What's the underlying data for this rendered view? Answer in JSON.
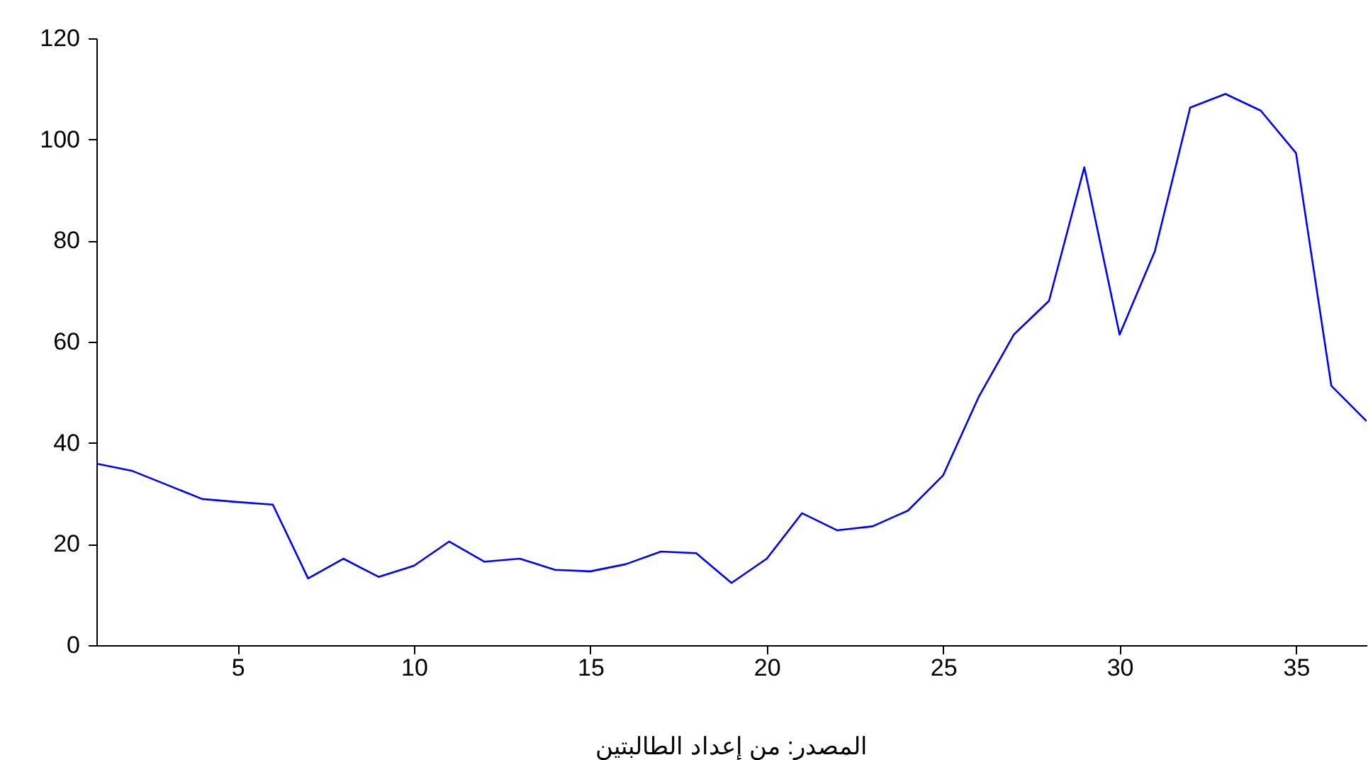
{
  "chart_data": {
    "type": "line",
    "x": [
      1,
      2,
      3,
      4,
      5,
      6,
      7,
      8,
      9,
      10,
      11,
      12,
      13,
      14,
      15,
      16,
      17,
      18,
      19,
      20,
      21,
      22,
      23,
      24,
      25,
      26,
      27,
      28,
      29,
      30,
      31,
      32,
      33,
      34,
      35,
      36,
      37
    ],
    "series": [
      {
        "color": "#0000ff",
        "values": [
          35.9,
          34.5,
          31.7,
          28.9,
          28.3,
          27.8,
          13.2,
          17.1,
          13.5,
          15.7,
          20.5,
          16.5,
          17.1,
          14.9,
          14.6,
          16.0,
          18.5,
          18.2,
          12.3,
          17.1,
          26.1,
          22.7,
          23.5,
          26.6,
          33.6,
          49.0,
          61.4,
          68.1,
          94.5,
          61.4,
          77.9,
          106.3,
          109.0,
          105.7,
          97.3,
          51.3,
          44.3
        ]
      }
    ],
    "xlim": [
      1,
      37
    ],
    "xticks": [
      5,
      10,
      15,
      20,
      25,
      30,
      35
    ],
    "ylim": [
      0,
      120
    ],
    "yticks": [
      0,
      20,
      40,
      60,
      80,
      100,
      120
    ],
    "grid": false,
    "marker": "none",
    "line_style": "solid",
    "annotations": [
      "المصدر: من إعداد الطالبتين"
    ]
  }
}
